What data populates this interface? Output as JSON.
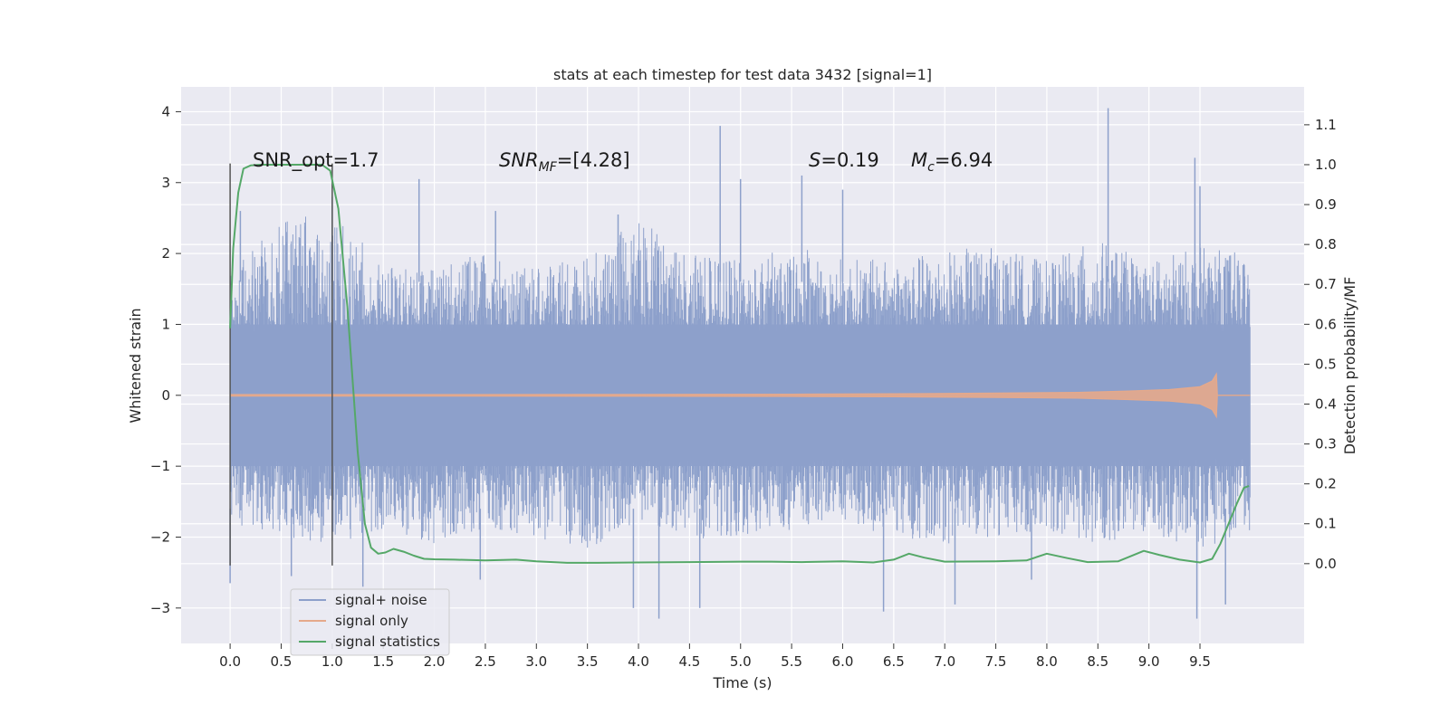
{
  "chart_data": {
    "type": "line",
    "title": "stats at each timestep for test data 3432 [signal=1]",
    "xlabel": "Time (s)",
    "ylabel": "Whitened strain",
    "ylabel_right": "Detection probability/MF",
    "xlim": [
      -0.48,
      10.52
    ],
    "ylim": [
      -3.5,
      4.35
    ],
    "ylim_right": [
      -0.2,
      1.195
    ],
    "x_ticks": [
      "0.0",
      "0.5",
      "1.0",
      "1.5",
      "2.0",
      "2.5",
      "3.0",
      "3.5",
      "4.0",
      "4.5",
      "5.0",
      "5.5",
      "6.0",
      "6.5",
      "7.0",
      "7.5",
      "8.0",
      "8.5",
      "9.0",
      "9.5"
    ],
    "y_ticks": [
      "−3",
      "−2",
      "−1",
      "0",
      "1",
      "2",
      "3",
      "4"
    ],
    "y_ticks_right": [
      "0.0",
      "0.1",
      "0.2",
      "0.3",
      "0.4",
      "0.5",
      "0.6",
      "0.7",
      "0.8",
      "0.9",
      "1.0",
      "1.1"
    ],
    "grid": true,
    "legend_position": "lower-left",
    "annotations": [
      {
        "text": "SNR_opt=1.7",
        "x": 0.2,
        "y": 3.3
      },
      {
        "main": "SNR",
        "sub": "MF",
        "rest": "=[4.28]",
        "x": 2.6,
        "y": 3.3
      },
      {
        "text": "S=0.19",
        "x": 5.6,
        "y": 3.3
      },
      {
        "main": "M",
        "sub": "c",
        "rest": "=6.94",
        "x": 6.6,
        "y": 3.3
      }
    ],
    "window_markers": {
      "x": [
        0.0,
        1.0
      ],
      "y_range": [
        -2.4,
        3.27
      ]
    },
    "series": [
      {
        "name": "signal+ noise",
        "color": "#8da0cb",
        "x_range": [
          0.0,
          9.99
        ],
        "core_band": [
          -1.0,
          1.0
        ],
        "envelope_upper": [
          1.75,
          2.45,
          2.6,
          1.85,
          1.8,
          2.05,
          1.8,
          1.95,
          2.5,
          2.0,
          1.9,
          2.1,
          1.95,
          1.9,
          2.05,
          2.1,
          1.9,
          2.2,
          1.9,
          2.1,
          2.0
        ],
        "envelope_lower": [
          -1.8,
          -2.0,
          -2.1,
          -1.9,
          -2.1,
          -1.9,
          -2.0,
          -2.2,
          -1.8,
          -2.0,
          -2.1,
          -1.9,
          -1.8,
          -2.0,
          -2.1,
          -2.0,
          -1.9,
          -2.1,
          -2.0,
          -2.2,
          -1.9
        ],
        "spikes": [
          {
            "x": 0.0,
            "y": -2.65
          },
          {
            "x": 0.1,
            "y": 2.6
          },
          {
            "x": 0.6,
            "y": -2.55
          },
          {
            "x": 1.3,
            "y": -2.7
          },
          {
            "x": 1.85,
            "y": 3.05
          },
          {
            "x": 2.45,
            "y": -2.6
          },
          {
            "x": 2.6,
            "y": 2.6
          },
          {
            "x": 3.8,
            "y": 2.55
          },
          {
            "x": 3.95,
            "y": -3.0
          },
          {
            "x": 4.2,
            "y": -3.15
          },
          {
            "x": 4.6,
            "y": -3.0
          },
          {
            "x": 4.8,
            "y": 3.8
          },
          {
            "x": 5.0,
            "y": 3.05
          },
          {
            "x": 5.6,
            "y": 3.1
          },
          {
            "x": 6.0,
            "y": 2.9
          },
          {
            "x": 6.4,
            "y": -3.05
          },
          {
            "x": 7.1,
            "y": -2.95
          },
          {
            "x": 7.85,
            "y": -2.6
          },
          {
            "x": 8.6,
            "y": 4.05
          },
          {
            "x": 9.45,
            "y": 3.35
          },
          {
            "x": 9.47,
            "y": -3.15
          },
          {
            "x": 9.75,
            "y": -2.95
          },
          {
            "x": 9.5,
            "y": 2.95
          },
          {
            "x": 1.0,
            "y": 2.8
          }
        ]
      },
      {
        "name": "signal only",
        "color": "#e5a98b",
        "x": [
          0.0,
          2.0,
          4.0,
          5.5,
          6.5,
          7.5,
          8.3,
          8.8,
          9.2,
          9.5,
          9.62,
          9.66,
          9.67,
          9.99
        ],
        "amplitude": [
          0.01,
          0.01,
          0.012,
          0.015,
          0.02,
          0.03,
          0.04,
          0.06,
          0.08,
          0.12,
          0.2,
          0.3,
          0.0,
          0.0
        ]
      },
      {
        "name": "signal statistics",
        "color": "#55a868",
        "axis": "right",
        "x": [
          0.0,
          0.03,
          0.08,
          0.13,
          0.2,
          0.3,
          0.5,
          0.7,
          0.9,
          0.98,
          1.06,
          1.15,
          1.25,
          1.32,
          1.38,
          1.45,
          1.52,
          1.6,
          1.7,
          1.8,
          1.9,
          2.0,
          2.2,
          2.5,
          2.8,
          3.0,
          3.3,
          3.6,
          4.0,
          4.5,
          5.0,
          5.3,
          5.6,
          6.0,
          6.3,
          6.5,
          6.65,
          6.8,
          7.0,
          7.5,
          7.8,
          8.0,
          8.2,
          8.4,
          8.7,
          8.95,
          9.1,
          9.3,
          9.5,
          9.62,
          9.7,
          9.78,
          9.86,
          9.93,
          9.98
        ],
        "y": [
          0.59,
          0.79,
          0.93,
          0.99,
          0.998,
          1.0,
          1.0,
          1.0,
          1.0,
          0.985,
          0.89,
          0.64,
          0.28,
          0.1,
          0.04,
          0.025,
          0.028,
          0.037,
          0.03,
          0.02,
          0.012,
          0.011,
          0.01,
          0.008,
          0.01,
          0.006,
          0.002,
          0.002,
          0.003,
          0.004,
          0.005,
          0.005,
          0.004,
          0.006,
          0.003,
          0.01,
          0.025,
          0.015,
          0.005,
          0.006,
          0.008,
          0.025,
          0.014,
          0.004,
          0.006,
          0.032,
          0.022,
          0.01,
          0.003,
          0.012,
          0.05,
          0.1,
          0.15,
          0.19,
          0.195
        ]
      }
    ]
  }
}
